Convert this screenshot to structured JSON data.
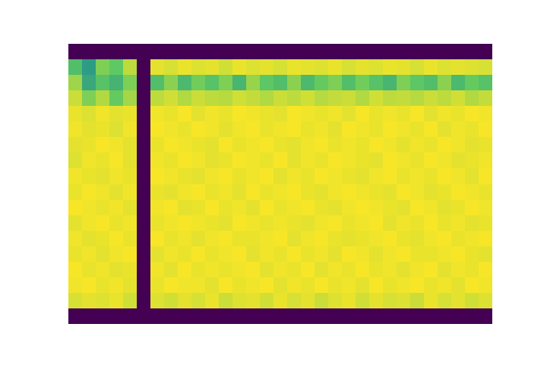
{
  "chart_data": {
    "type": "heatmap",
    "tick_labels": false,
    "zlim": [
      0,
      100
    ],
    "cells": [
      [
        0,
        0,
        0,
        0,
        0,
        0,
        0,
        0,
        0,
        0,
        0,
        0,
        0,
        0,
        0,
        0,
        0,
        0,
        0,
        0,
        0,
        0,
        0,
        0,
        0,
        0,
        0,
        0,
        0,
        0,
        0
      ],
      [
        70,
        55,
        80,
        75,
        90,
        0,
        96,
        94,
        97,
        95,
        96,
        93,
        97,
        95,
        96,
        94,
        97,
        96,
        95,
        97,
        94,
        96,
        95,
        97,
        96,
        94,
        97,
        95,
        96,
        95,
        94
      ],
      [
        85,
        60,
        72,
        65,
        80,
        0,
        70,
        82,
        68,
        78,
        72,
        80,
        66,
        84,
        74,
        70,
        82,
        68,
        76,
        80,
        70,
        78,
        72,
        66,
        80,
        74,
        70,
        82,
        68,
        76,
        72
      ],
      [
        92,
        80,
        88,
        76,
        86,
        0,
        90,
        93,
        88,
        92,
        90,
        89,
        93,
        91,
        88,
        92,
        90,
        93,
        89,
        91,
        92,
        88,
        93,
        90,
        91,
        89,
        92,
        90,
        93,
        88,
        91
      ],
      [
        97,
        95,
        98,
        96,
        97,
        0,
        98,
        97,
        99,
        96,
        98,
        97,
        99,
        98,
        97,
        96,
        99,
        98,
        97,
        98,
        96,
        99,
        97,
        98,
        97,
        99,
        96,
        98,
        97,
        99,
        98
      ],
      [
        98,
        96,
        97,
        95,
        98,
        0,
        99,
        98,
        97,
        99,
        98,
        96,
        98,
        99,
        97,
        98,
        99,
        97,
        98,
        96,
        99,
        98,
        97,
        99,
        98,
        97,
        99,
        96,
        98,
        97,
        99
      ],
      [
        96,
        97,
        99,
        98,
        96,
        0,
        97,
        99,
        98,
        97,
        96,
        99,
        97,
        98,
        99,
        97,
        96,
        98,
        99,
        97,
        98,
        97,
        99,
        98,
        96,
        98,
        97,
        99,
        98,
        96,
        97
      ],
      [
        95,
        98,
        97,
        99,
        96,
        0,
        98,
        97,
        99,
        98,
        96,
        97,
        99,
        98,
        97,
        99,
        96,
        98,
        97,
        99,
        98,
        97,
        96,
        99,
        98,
        97,
        99,
        98,
        96,
        97,
        98
      ],
      [
        98,
        97,
        96,
        98,
        97,
        0,
        99,
        98,
        97,
        96,
        98,
        99,
        97,
        98,
        99,
        96,
        98,
        97,
        99,
        98,
        97,
        96,
        98,
        99,
        97,
        98,
        97,
        99,
        98,
        96,
        99
      ],
      [
        97,
        99,
        98,
        96,
        98,
        0,
        97,
        96,
        98,
        99,
        97,
        98,
        96,
        99,
        97,
        98,
        99,
        97,
        96,
        98,
        99,
        98,
        97,
        96,
        99,
        98,
        96,
        97,
        99,
        98,
        97
      ],
      [
        99,
        98,
        97,
        98,
        96,
        0,
        98,
        99,
        96,
        97,
        99,
        97,
        98,
        96,
        99,
        97,
        98,
        99,
        97,
        96,
        98,
        99,
        98,
        97,
        96,
        99,
        98,
        96,
        97,
        99,
        98
      ],
      [
        96,
        98,
        99,
        97,
        98,
        0,
        97,
        98,
        99,
        98,
        97,
        96,
        99,
        98,
        97,
        98,
        97,
        96,
        98,
        99,
        97,
        98,
        99,
        96,
        98,
        97,
        99,
        97,
        98,
        96,
        97
      ],
      [
        98,
        96,
        97,
        99,
        97,
        0,
        99,
        97,
        98,
        96,
        98,
        99,
        97,
        97,
        98,
        99,
        96,
        98,
        99,
        97,
        96,
        97,
        98,
        99,
        97,
        96,
        98,
        99,
        97,
        98,
        99
      ],
      [
        97,
        98,
        96,
        98,
        99,
        0,
        96,
        98,
        97,
        99,
        97,
        98,
        99,
        96,
        98,
        97,
        99,
        97,
        98,
        96,
        99,
        98,
        96,
        98,
        99,
        97,
        97,
        98,
        99,
        97,
        96
      ],
      [
        99,
        97,
        98,
        96,
        97,
        0,
        98,
        96,
        99,
        97,
        98,
        97,
        98,
        99,
        96,
        98,
        97,
        99,
        96,
        98,
        97,
        99,
        97,
        98,
        96,
        98,
        99,
        96,
        98,
        97,
        99
      ],
      [
        98,
        99,
        97,
        98,
        96,
        0,
        97,
        99,
        98,
        98,
        96,
        99,
        97,
        98,
        99,
        96,
        98,
        97,
        99,
        97,
        98,
        96,
        99,
        97,
        98,
        99,
        97,
        98,
        96,
        99,
        98
      ],
      [
        94,
        96,
        95,
        97,
        93,
        0,
        95,
        93,
        96,
        94,
        97,
        92,
        95,
        96,
        93,
        97,
        94,
        96,
        92,
        95,
        97,
        93,
        96,
        94,
        95,
        92,
        97,
        94,
        96,
        93,
        95
      ],
      [
        0,
        0,
        0,
        0,
        0,
        0,
        0,
        0,
        0,
        0,
        0,
        0,
        0,
        0,
        0,
        0,
        0,
        0,
        0,
        0,
        0,
        0,
        0,
        0,
        0,
        0,
        0,
        0,
        0,
        0,
        0
      ]
    ]
  }
}
